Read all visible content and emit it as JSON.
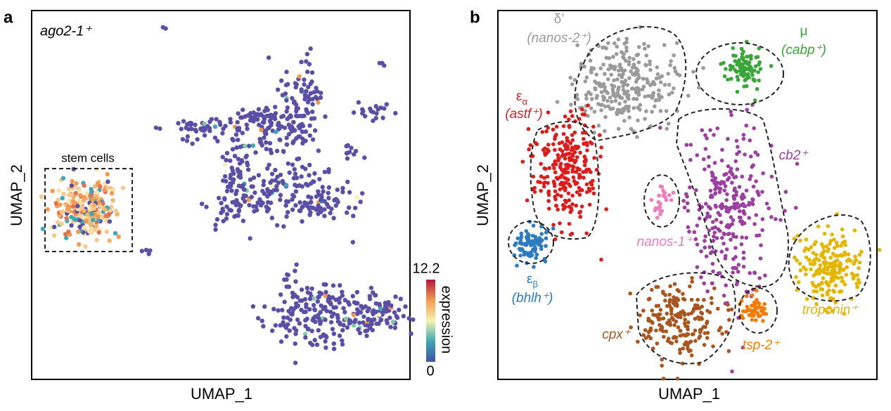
{
  "panel_a": {
    "label": "a",
    "gene": "ago2-1⁺",
    "box_label": "stem cells",
    "x_label": "UMAP_1",
    "y_label": "UMAP_2",
    "colorbar": {
      "title": "expression",
      "max_label": "12.2",
      "min_label": "0"
    }
  },
  "panel_b": {
    "label": "b",
    "x_label": "UMAP_1",
    "y_label": "UMAP_2",
    "clusters": [
      {
        "name": "δ’",
        "marker": "(nanos-2⁺)",
        "color": "#9a9a9a"
      },
      {
        "name": "μ",
        "marker": "(cabp⁺)",
        "color": "#3aa63a"
      },
      {
        "name": "ε",
        "sub": "α",
        "marker": "(astf⁺)",
        "color": "#dd1c1c"
      },
      {
        "marker": "cb2⁺",
        "color": "#9b3fa0"
      },
      {
        "marker": "nanos-1⁺",
        "color": "#ee7cbe"
      },
      {
        "name": "ε",
        "sub": "β",
        "marker": "(bhlh⁺)",
        "color": "#2f7bbf"
      },
      {
        "marker": "troponin⁺",
        "color": "#e3b600"
      },
      {
        "marker": "cpx⁺",
        "color": "#a8561f"
      },
      {
        "marker": "tsp-2⁺",
        "color": "#f47b00"
      }
    ]
  }
}
